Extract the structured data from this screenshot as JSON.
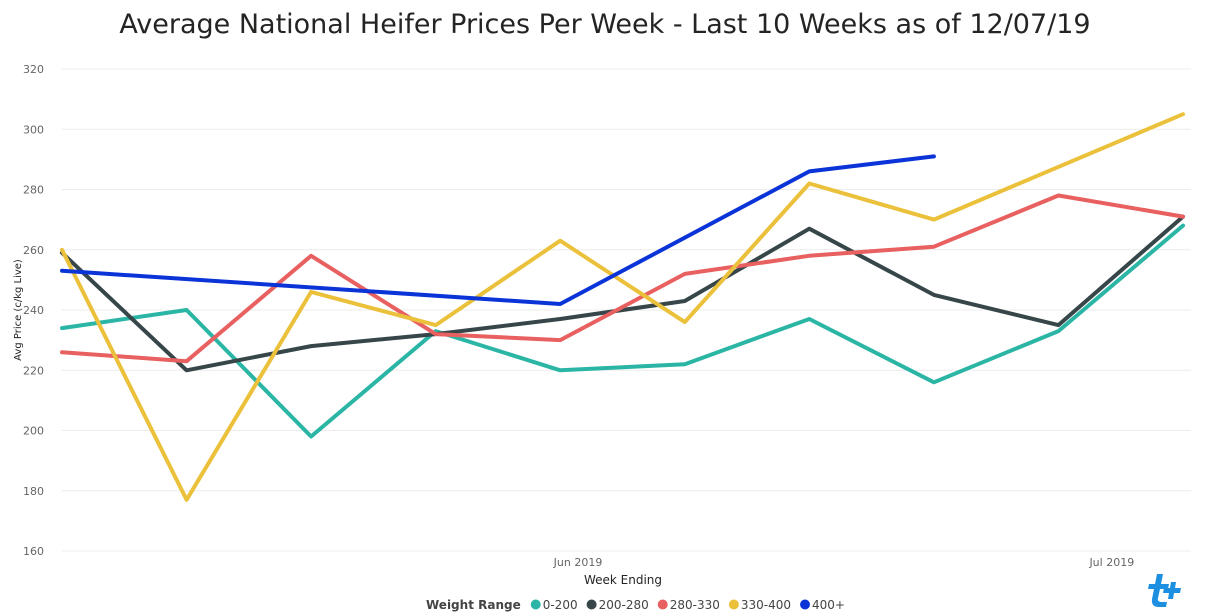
{
  "chart_data": {
    "type": "line",
    "title": "Average National Heifer Prices Per Week - Last 10 Weeks as of 12/07/19",
    "xlabel": "Week Ending",
    "ylabel": "Avg Price (c/kg Live)",
    "ylim": [
      160,
      320
    ],
    "yticks": [
      160,
      180,
      200,
      220,
      240,
      260,
      280,
      300,
      320
    ],
    "x": [
      "2019-05-03",
      "2019-05-10",
      "2019-05-17",
      "2019-05-24",
      "2019-05-31",
      "2019-06-07",
      "2019-06-14",
      "2019-06-21",
      "2019-06-28",
      "2019-07-05"
    ],
    "xtick_labels": [
      {
        "date": "2019-06-01",
        "label": "Jun 2019"
      },
      {
        "date": "2019-07-01",
        "label": "Jul 2019"
      }
    ],
    "grid": true,
    "legend_title": "Weight Range",
    "legend_position": "bottom",
    "series": [
      {
        "name": "0-200",
        "color": "#2AB5A5",
        "values": [
          234,
          240,
          198,
          233,
          220,
          222,
          237,
          216,
          233,
          268
        ]
      },
      {
        "name": "200-280",
        "color": "#374649",
        "values": [
          259,
          220,
          228,
          232,
          237,
          243,
          267,
          245,
          235,
          271
        ]
      },
      {
        "name": "280-330",
        "color": "#E8605F",
        "values": [
          226,
          223,
          258,
          232,
          230,
          252,
          258,
          261,
          278,
          271
        ]
      },
      {
        "name": "330-400",
        "color": "#EBC13B",
        "values": [
          260,
          177,
          246,
          235,
          263,
          236,
          282,
          270,
          null,
          305
        ]
      },
      {
        "name": "400+",
        "color": "#0B34D8",
        "values": [
          253,
          null,
          null,
          null,
          242,
          null,
          286,
          291,
          null,
          null
        ]
      }
    ]
  }
}
